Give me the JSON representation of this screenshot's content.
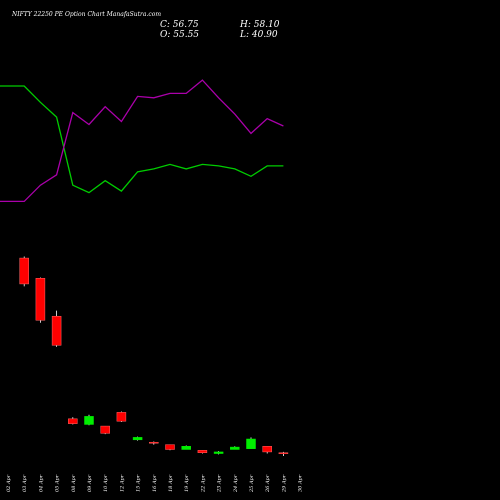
{
  "chart_data": {
    "type": "candlestick",
    "title": "NIFTY 22250  PE Option  Chart ManafaSutra.com",
    "ohlc": {
      "close": "C: 56.75",
      "open": "O: 55.55",
      "high": "H: 58.10",
      "low": "L: 40.90"
    },
    "categories": [
      "02 Apr",
      "03 Apr",
      "04 Apr",
      "05 Apr",
      "08 Apr",
      "09 Apr",
      "10 Apr",
      "12 Apr",
      "15 Apr",
      "16 Apr",
      "18 Apr",
      "19 Apr",
      "22 Apr",
      "23 Apr",
      "24 Apr",
      "25 Apr",
      "26 Apr",
      "29 Apr",
      "30 Apr"
    ],
    "candles": [
      {
        "x": "02 Apr",
        "open": null,
        "high": null,
        "low": null,
        "close": null
      },
      {
        "x": "03 Apr",
        "open": 230,
        "high": 232,
        "low": 195,
        "close": 198
      },
      {
        "x": "04 Apr",
        "open": 205,
        "high": 206,
        "low": 150,
        "close": 153
      },
      {
        "x": "05 Apr",
        "open": 158,
        "high": 165,
        "low": 120,
        "close": 122
      },
      {
        "x": "08 Apr",
        "open": 31,
        "high": 33,
        "low": 24,
        "close": 25
      },
      {
        "x": "09 Apr",
        "open": 24,
        "high": 36,
        "low": 23,
        "close": 34
      },
      {
        "x": "10 Apr",
        "open": 22,
        "high": 22,
        "low": 12,
        "close": 13
      },
      {
        "x": "12 Apr",
        "open": 39,
        "high": 40,
        "low": 27,
        "close": 28
      },
      {
        "x": "15 Apr",
        "open": 5,
        "high": 9,
        "low": 4,
        "close": 8
      },
      {
        "x": "16 Apr",
        "open": 2,
        "high": 3,
        "low": -1,
        "close": 1
      },
      {
        "x": "18 Apr",
        "open": -1,
        "high": -1,
        "low": -8,
        "close": -7
      },
      {
        "x": "19 Apr",
        "open": -7,
        "high": -2,
        "low": -7,
        "close": -3
      },
      {
        "x": "22 Apr",
        "open": -8,
        "high": -8,
        "low": -12,
        "close": -11
      },
      {
        "x": "23 Apr",
        "open": -12,
        "high": -9,
        "low": -13,
        "close": -10
      },
      {
        "x": "24 Apr",
        "open": -7,
        "high": -3,
        "low": -7,
        "close": -4
      },
      {
        "x": "25 Apr",
        "open": -6,
        "high": 8,
        "low": -6,
        "close": 6
      },
      {
        "x": "26 Apr",
        "open": -3,
        "high": -3,
        "low": -12,
        "close": -10
      },
      {
        "x": "29 Apr",
        "open": -11,
        "high": -10,
        "low": -15,
        "close": -11.5
      },
      {
        "x": "30 Apr",
        "open": null,
        "high": null,
        "low": null,
        "close": null
      }
    ],
    "series": [
      {
        "color": "#00cc00",
        "values": [
          100,
          100,
          89,
          79,
          33,
          28,
          36,
          29,
          42,
          44,
          47,
          44,
          47,
          46,
          44,
          39,
          46,
          46,
          null
        ]
      },
      {
        "color": "#aa00aa",
        "values": [
          22,
          22,
          33,
          40,
          82,
          74,
          86,
          76,
          93,
          92,
          95,
          95,
          104,
          92,
          81,
          68,
          78,
          73,
          null
        ]
      }
    ],
    "colors": {
      "up": "#00ee00",
      "down": "#ff0000",
      "background": "#000000"
    },
    "grid": false
  }
}
